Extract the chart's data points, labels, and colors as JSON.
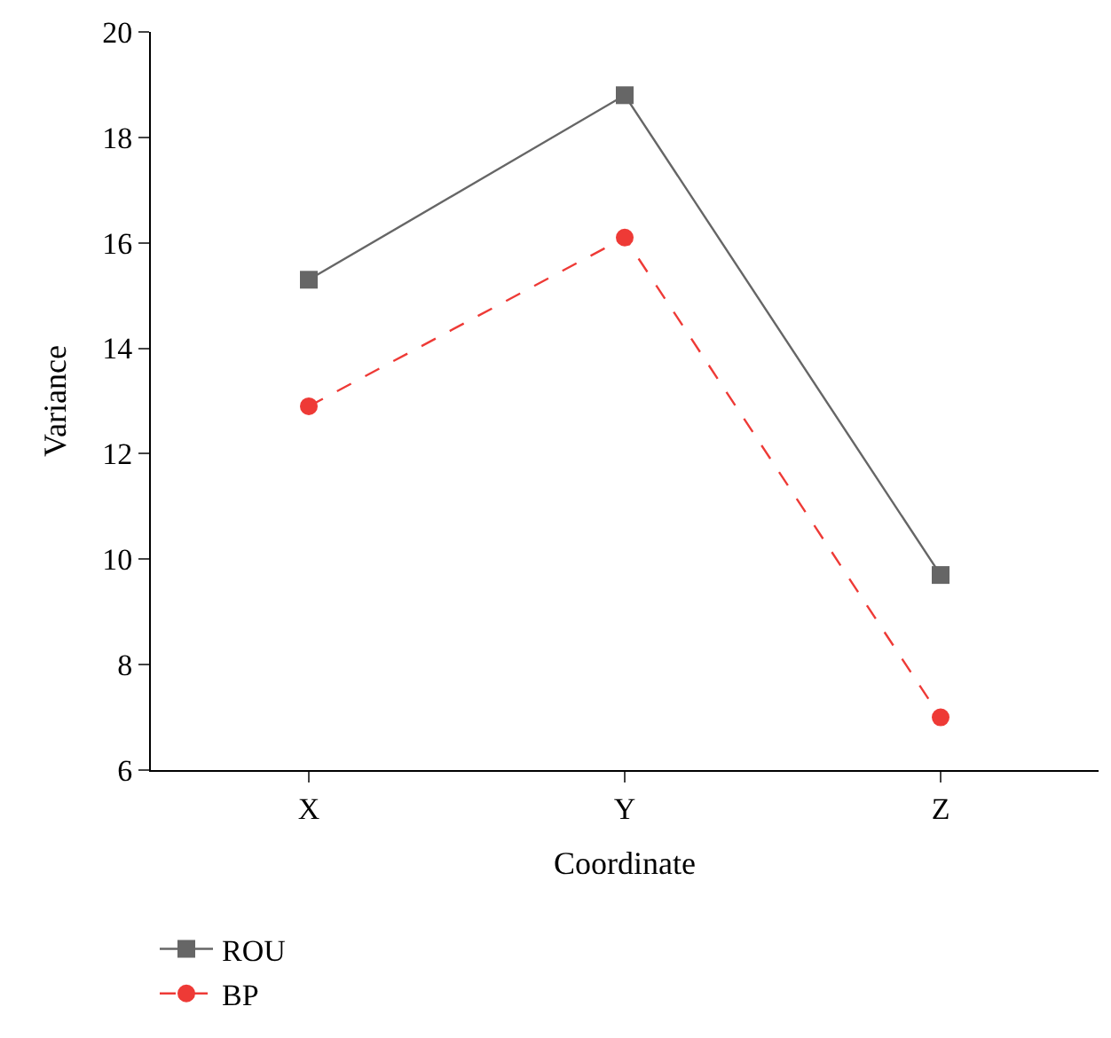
{
  "chart_data": {
    "type": "line",
    "xlabel": "Coordinate",
    "ylabel": "Variance",
    "categories": [
      "X",
      "Y",
      "Z"
    ],
    "series": [
      {
        "name": "ROU",
        "color": "#666666",
        "values": [
          15.3,
          18.8,
          9.7
        ],
        "marker": "square",
        "line_style": "solid"
      },
      {
        "name": "BP",
        "color": "#ee3a36",
        "values": [
          12.9,
          16.1,
          7.0
        ],
        "marker": "circle",
        "line_style": "dashed"
      }
    ],
    "ylim": [
      6,
      20
    ],
    "yticks": [
      6,
      8,
      10,
      12,
      14,
      16,
      18,
      20
    ],
    "legend": "bottom left"
  }
}
